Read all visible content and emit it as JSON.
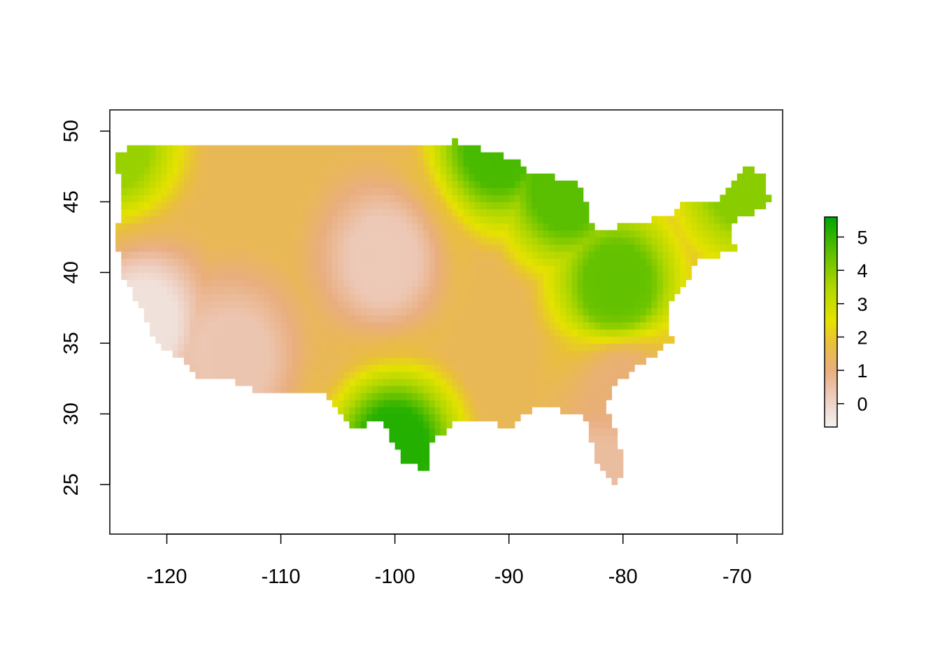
{
  "chart_data": {
    "type": "heatmap",
    "title": "",
    "xlabel": "",
    "ylabel": "",
    "xlim": [
      -125,
      -66
    ],
    "ylim": [
      21.5,
      51.5
    ],
    "x_ticks": [
      "-120",
      "-110",
      "-100",
      "-90",
      "-80",
      "-70"
    ],
    "y_ticks": [
      "25",
      "30",
      "35",
      "40",
      "45",
      "50"
    ],
    "x_tick_values": [
      -120,
      -110,
      -100,
      -90,
      -80,
      -70
    ],
    "y_tick_values": [
      25,
      30,
      35,
      40,
      45,
      50
    ],
    "grid": false,
    "legend": {
      "position": "right",
      "range": [
        -0.7,
        5.6
      ],
      "ticks": [
        "0",
        "1",
        "2",
        "3",
        "4",
        "5"
      ],
      "tick_values": [
        0,
        1,
        2,
        3,
        4,
        5
      ]
    },
    "color_scale": [
      {
        "value": -0.7,
        "color": "#f2f2f2"
      },
      {
        "value": 0.3,
        "color": "#edc9b8"
      },
      {
        "value": 1.0,
        "color": "#e9ae7e"
      },
      {
        "value": 1.8,
        "color": "#e9be3e"
      },
      {
        "value": 2.5,
        "color": "#e5e200"
      },
      {
        "value": 3.5,
        "color": "#b0d700"
      },
      {
        "value": 4.5,
        "color": "#62c100"
      },
      {
        "value": 5.6,
        "color": "#00a600"
      }
    ],
    "region": "Contiguous United States",
    "grid_resolution_deg": 1,
    "cell_value_regions": [
      {
        "name": "southwest deserts",
        "lon": -114,
        "lat": 34,
        "value": 0.4
      },
      {
        "name": "southern california coast",
        "lon": -122,
        "lat": 36.5,
        "value": -0.3
      },
      {
        "name": "central plains",
        "lon": -101,
        "lat": 41,
        "value": 0.3
      },
      {
        "name": "upper great lakes",
        "lon": -91,
        "lat": 49,
        "value": 4.8
      },
      {
        "name": "michigan",
        "lon": -85,
        "lat": 46,
        "value": 4.6
      },
      {
        "name": "ohio valley",
        "lon": -80.5,
        "lat": 39,
        "value": 4.5
      },
      {
        "name": "south texas",
        "lon": -100,
        "lat": 27.5,
        "value": 5.2
      },
      {
        "name": "maine",
        "lon": -69.5,
        "lat": 46.5,
        "value": 4.0
      },
      {
        "name": "pacific northwest",
        "lon": -124.5,
        "lat": 49,
        "value": 3.8
      },
      {
        "name": "southeast coastal",
        "lon": -80,
        "lat": 32,
        "value": 1.1
      },
      {
        "name": "florida peninsula",
        "lon": -81.5,
        "lat": 26,
        "value": 0.6
      }
    ]
  }
}
